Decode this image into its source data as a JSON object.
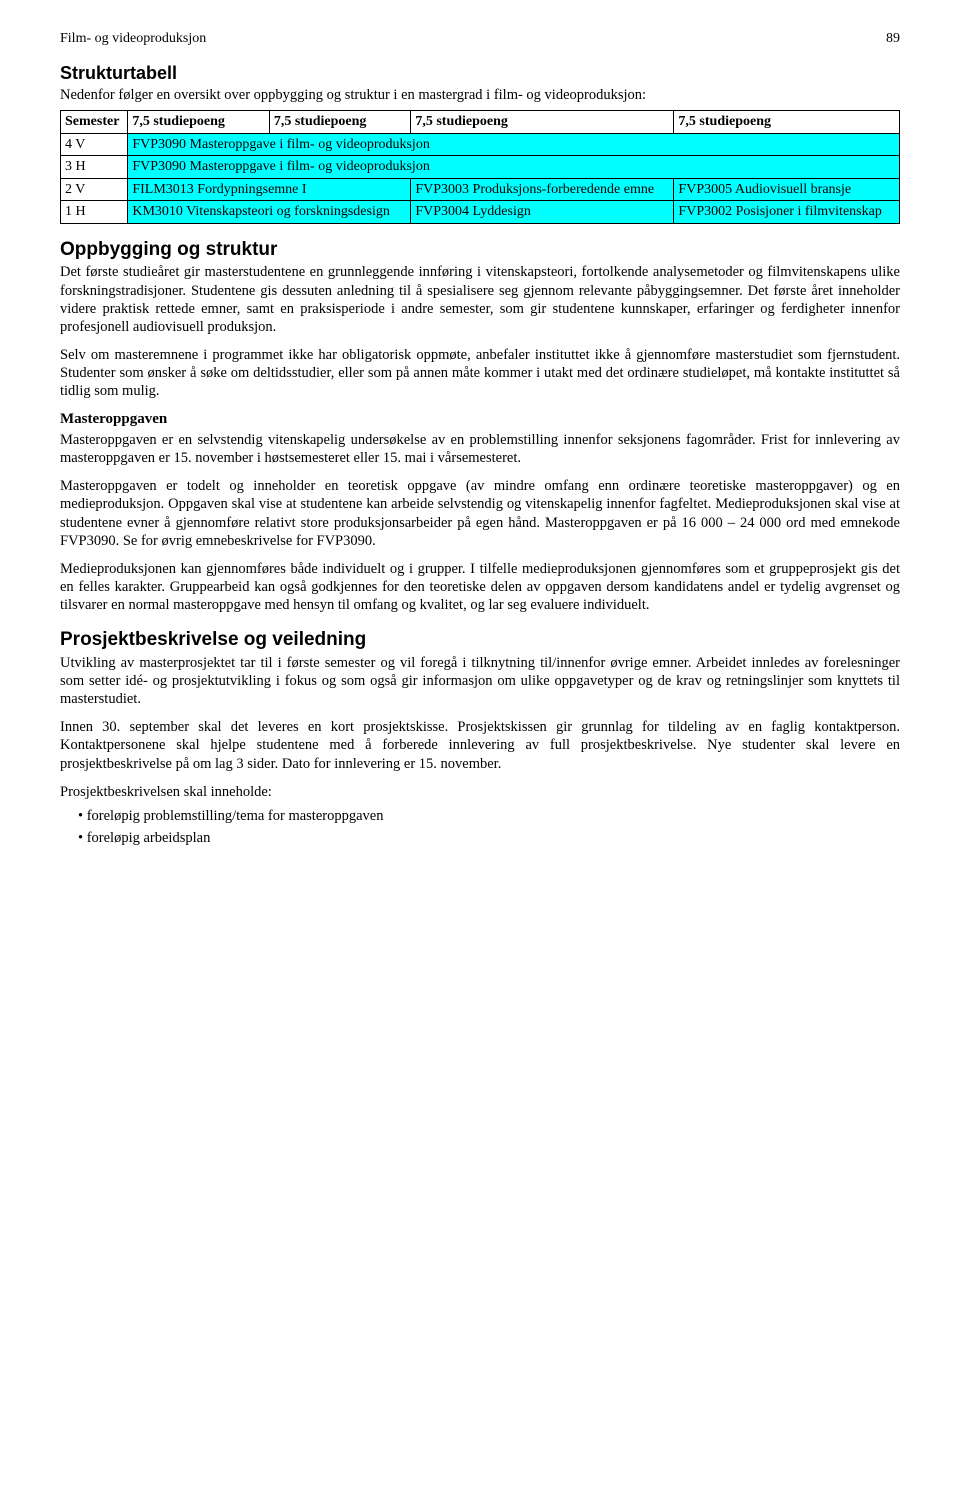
{
  "header": {
    "running_title": "Film- og videoproduksjon",
    "page_number": "89"
  },
  "strukturtabell": {
    "heading": "Strukturtabell",
    "intro": "Nedenfor følger en oversikt over oppbygging og struktur i en mastergrad i film- og videoproduksjon:",
    "colors": {
      "cell_highlight": "#00ffff",
      "border": "#000000",
      "text": "#000000",
      "background": "#ffffff"
    },
    "columns": [
      "Semester",
      "7,5 studiepoeng",
      "7,5 studiepoeng",
      "7,5 studiepoeng",
      "7,5 studiepoeng"
    ],
    "rows": [
      {
        "sem": "4 V",
        "cells": [
          "FVP3090 Masteroppgave i film- og videoproduksjon"
        ],
        "span": 4,
        "highlight": true
      },
      {
        "sem": "3 H",
        "cells": [
          "FVP3090 Masteroppgave i film- og videoproduksjon"
        ],
        "span": 4,
        "highlight": true
      },
      {
        "sem": "2 V",
        "cells": [
          "FILM3013 Fordypningsemne I",
          "FVP3003 Produksjons-forberedende emne",
          "FVP3005 Audiovisuell bransje"
        ],
        "spans": [
          2,
          1,
          1
        ],
        "highlight": true
      },
      {
        "sem": "1 H",
        "cells": [
          "KM3010 Vitenskapsteori og forskningsdesign",
          "FVP3004 Lyddesign",
          "FVP3002 Posisjoner i filmvitenskap"
        ],
        "spans": [
          2,
          1,
          1
        ],
        "highlight": true
      }
    ]
  },
  "oppbygging": {
    "heading": "Oppbygging og struktur",
    "p1": "Det første studieåret gir masterstudentene en grunnleggende innføring i vitenskapsteori, fortolkende analysemetoder og filmvitenskapens ulike forskningstradisjoner. Studentene gis dessuten anledning til å spesialisere seg gjennom relevante påbyggingsemner. Det første året inneholder videre praktisk rettede emner, samt en praksisperiode i andre semester, som gir studentene kunnskaper, erfaringer og ferdigheter innenfor profesjonell audiovisuell produksjon.",
    "p2": "Selv om masteremnene i programmet ikke har obligatorisk oppmøte, anbefaler instituttet ikke å gjennomføre masterstudiet som fjernstudent. Studenter som ønsker å søke om deltidsstudier, eller som på annen måte kommer i utakt med det ordinære studieløpet, må kontakte instituttet så tidlig som mulig."
  },
  "masteroppgaven": {
    "heading": "Masteroppgaven",
    "p1": "Masteroppgaven er en selvstendig vitenskapelig undersøkelse av en problemstilling innenfor seksjonens fagområder. Frist for innlevering av masteroppgaven er 15. november i høstsemesteret eller 15. mai i vårsemesteret.",
    "p2": "Masteroppgaven er todelt og inneholder en teoretisk oppgave (av mindre omfang enn ordinære teoretiske masteroppgaver) og en medieproduksjon. Oppgaven skal vise at studentene kan arbeide selvstendig og vitenskapelig innenfor fagfeltet. Medieproduksjonen skal vise at studentene evner å gjennomføre relativt store produksjonsarbeider på egen hånd. Masteroppgaven er på 16 000 – 24 000 ord med emnekode FVP3090. Se for øvrig emnebeskrivelse for FVP3090.",
    "p3": "Medieproduksjonen kan gjennomføres både individuelt og i grupper. I tilfelle medieproduksjonen gjennomføres som et gruppeprosjekt gis det en felles karakter. Gruppearbeid kan også godkjennes for den teoretiske delen av oppgaven dersom kandidatens andel er tydelig avgrenset og tilsvarer en normal masteroppgave med hensyn til omfang og kvalitet, og lar seg evaluere individuelt."
  },
  "prosjekt": {
    "heading": "Prosjektbeskrivelse og veiledning",
    "p1": "Utvikling av masterprosjektet tar til i første semester og vil foregå i tilknytning til/innenfor øvrige emner. Arbeidet innledes av forelesninger som setter idé- og prosjektutvikling i fokus og som også gir informasjon om ulike oppgavetyper og de krav og retningslinjer som knyttets til masterstudiet.",
    "p2": "Innen 30. september skal det leveres en kort prosjektskisse. Prosjektskissen gir grunnlag for tildeling av en faglig kontaktperson. Kontaktpersonene skal hjelpe studentene med å forberede innlevering av full prosjektbeskrivelse. Nye studenter skal levere en prosjektbeskrivelse på om lag 3 sider. Dato for innlevering er 15. november.",
    "p3": "Prosjektbeskrivelsen skal inneholde:",
    "bullets": [
      "foreløpig problemstilling/tema for masteroppgaven",
      "foreløpig arbeidsplan"
    ]
  }
}
